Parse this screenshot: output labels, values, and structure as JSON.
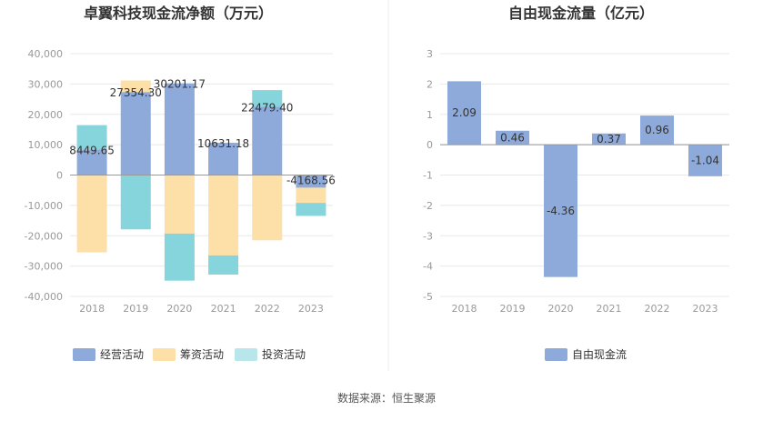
{
  "chart_data": [
    {
      "type": "bar",
      "stacked": true,
      "title": "卓翼科技现金流净额（万元）",
      "categories": [
        "2018",
        "2019",
        "2020",
        "2021",
        "2022",
        "2023"
      ],
      "ylim": [
        -40000,
        40000
      ],
      "yticks": [
        40000,
        30000,
        20000,
        10000,
        0,
        -10000,
        -20000,
        -30000,
        -40000
      ],
      "ytick_labels": [
        "40,000",
        "30,000",
        "20,000",
        "10,000",
        "0",
        "-10,000",
        "-20,000",
        "-30,000",
        "-40,000"
      ],
      "series": [
        {
          "name": "经营活动",
          "color": "#8eaadb",
          "values": [
            8449.65,
            27354.3,
            30201.17,
            10631.18,
            22479.4,
            -4168.56
          ]
        },
        {
          "name": "筹资活动",
          "color": "#fddfa8",
          "values": [
            -25500,
            3800,
            -19300,
            -26500,
            -21500,
            -5000
          ]
        },
        {
          "name": "投资活动",
          "color": "#86d4dc",
          "values": [
            8000,
            -17900,
            -15500,
            -6300,
            5500,
            -4300
          ]
        }
      ],
      "data_labels": [
        "8449.65",
        "27354.30",
        "30201.17",
        "10631.18",
        "22479.40",
        "-4168.56"
      ],
      "legend_position": "bottom",
      "legend": [
        {
          "name": "经营活动",
          "color": "#8eaadb"
        },
        {
          "name": "筹资活动",
          "color": "#fddfa8"
        },
        {
          "name": "投资活动",
          "color": "#b9e6ea"
        }
      ]
    },
    {
      "type": "bar",
      "title": "自由现金流量（亿元）",
      "categories": [
        "2018",
        "2019",
        "2020",
        "2021",
        "2022",
        "2023"
      ],
      "ylim": [
        -5,
        3
      ],
      "yticks": [
        3,
        2,
        1,
        0,
        -1,
        -2,
        -3,
        -4,
        -5
      ],
      "ytick_labels": [
        "3",
        "2",
        "1",
        "0",
        "-1",
        "-2",
        "-3",
        "-4",
        "-5"
      ],
      "series": [
        {
          "name": "自由现金流",
          "color": "#8eaadb",
          "values": [
            2.09,
            0.46,
            -4.36,
            0.37,
            0.96,
            -1.04
          ]
        }
      ],
      "data_labels": [
        "2.09",
        "0.46",
        "-4.36",
        "0.37",
        "0.96",
        "-1.04"
      ],
      "legend_position": "bottom",
      "legend": [
        {
          "name": "自由现金流",
          "color": "#8eaadb"
        }
      ]
    }
  ],
  "footer": {
    "source": "数据来源：恒生聚源"
  }
}
